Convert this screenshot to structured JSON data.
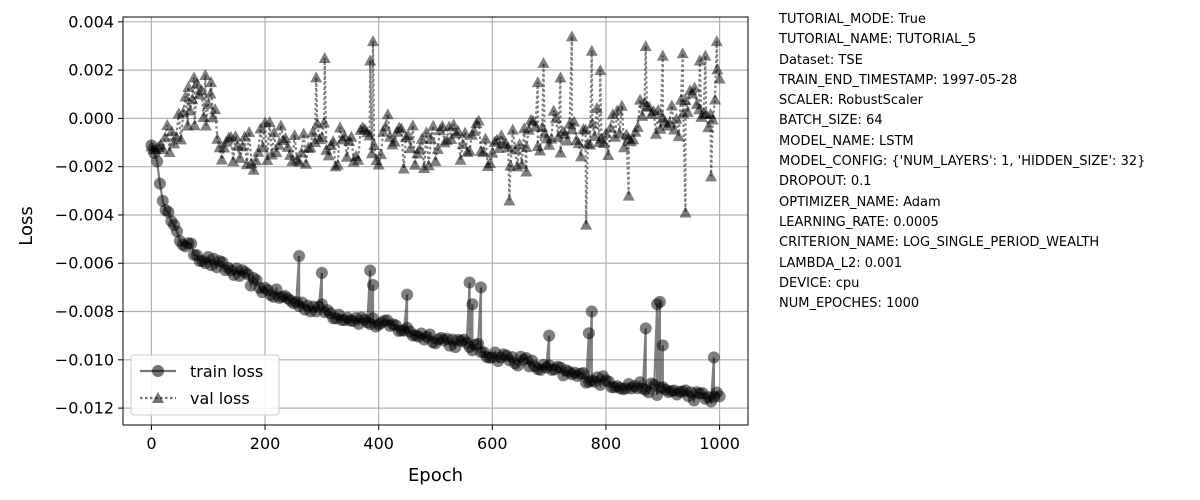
{
  "chart_data": {
    "type": "line",
    "xlabel": "Epoch",
    "ylabel": "Loss",
    "xlim": [
      -50,
      1050
    ],
    "ylim": [
      -0.0127,
      0.0042
    ],
    "x_ticks": [
      0,
      200,
      400,
      600,
      800,
      1000
    ],
    "y_ticks": [
      0.004,
      0.002,
      0.0,
      -0.002,
      -0.004,
      -0.006,
      -0.008,
      -0.01,
      -0.012
    ],
    "x_tick_labels": [
      "0",
      "200",
      "400",
      "600",
      "800",
      "1000"
    ],
    "y_tick_labels": [
      "0.004",
      "0.002",
      "0.000",
      "−0.002",
      "−0.004",
      "−0.006",
      "−0.008",
      "−0.010",
      "−0.012"
    ],
    "grid": true,
    "legend_position": "lower-left",
    "series": [
      {
        "name": "train loss",
        "style": "solid",
        "marker": "circle",
        "color": "#000000",
        "x": [
          0,
          10,
          20,
          30,
          40,
          50,
          60,
          70,
          80,
          90,
          100,
          110,
          120,
          140,
          160,
          180,
          200,
          220,
          240,
          260,
          280,
          300,
          320,
          340,
          360,
          380,
          400,
          420,
          440,
          460,
          480,
          500,
          520,
          540,
          560,
          580,
          600,
          620,
          640,
          660,
          680,
          700,
          720,
          740,
          760,
          780,
          800,
          820,
          840,
          860,
          880,
          900,
          920,
          940,
          960,
          980,
          1000
        ],
        "values": [
          -0.0011,
          -0.0018,
          -0.0032,
          -0.004,
          -0.0046,
          -0.005,
          -0.0052,
          -0.0054,
          -0.0056,
          -0.0058,
          -0.0059,
          -0.006,
          -0.0061,
          -0.0063,
          -0.0065,
          -0.0068,
          -0.0071,
          -0.0073,
          -0.0075,
          -0.0077,
          -0.0078,
          -0.0079,
          -0.0081,
          -0.0082,
          -0.0083,
          -0.0084,
          -0.0085,
          -0.0086,
          -0.0087,
          -0.0089,
          -0.009,
          -0.0091,
          -0.0092,
          -0.0093,
          -0.0094,
          -0.0096,
          -0.0098,
          -0.0099,
          -0.01,
          -0.0101,
          -0.0103,
          -0.0104,
          -0.0105,
          -0.0106,
          -0.0107,
          -0.0108,
          -0.0109,
          -0.011,
          -0.0111,
          -0.0111,
          -0.0112,
          -0.0113,
          -0.0113,
          -0.0114,
          -0.0115,
          -0.0116,
          -0.0115
        ],
        "spikes": [
          {
            "x": 260,
            "value": -0.0057
          },
          {
            "x": 300,
            "value": -0.0064
          },
          {
            "x": 385,
            "value": -0.0063
          },
          {
            "x": 390,
            "value": -0.0069
          },
          {
            "x": 450,
            "value": -0.0073
          },
          {
            "x": 560,
            "value": -0.0068
          },
          {
            "x": 565,
            "value": -0.0077
          },
          {
            "x": 580,
            "value": -0.007
          },
          {
            "x": 700,
            "value": -0.009
          },
          {
            "x": 770,
            "value": -0.0089
          },
          {
            "x": 775,
            "value": -0.008
          },
          {
            "x": 870,
            "value": -0.0087
          },
          {
            "x": 890,
            "value": -0.0077
          },
          {
            "x": 895,
            "value": -0.0076
          },
          {
            "x": 900,
            "value": -0.0094
          },
          {
            "x": 990,
            "value": -0.0099
          }
        ]
      },
      {
        "name": "val loss",
        "style": "dotted",
        "marker": "triangle",
        "color": "#000000",
        "x": [
          0,
          20,
          40,
          60,
          80,
          100,
          120,
          140,
          160,
          180,
          200,
          220,
          240,
          260,
          280,
          300,
          320,
          340,
          360,
          380,
          400,
          420,
          440,
          460,
          480,
          500,
          520,
          540,
          560,
          580,
          600,
          620,
          640,
          660,
          680,
          700,
          720,
          740,
          760,
          780,
          800,
          820,
          840,
          860,
          880,
          900,
          920,
          940,
          960,
          980,
          1000
        ],
        "values": [
          -0.0012,
          -0.0013,
          -0.0005,
          0.0002,
          0.0006,
          0.0006,
          -0.0008,
          -0.0012,
          -0.001,
          -0.0014,
          -0.0008,
          -0.0012,
          -0.001,
          -0.0009,
          -0.0011,
          -0.0006,
          -0.0013,
          -0.0008,
          -0.001,
          -0.0008,
          -0.0011,
          -0.0006,
          -0.0013,
          -0.001,
          -0.0014,
          -0.001,
          -0.0008,
          -0.0012,
          -0.0007,
          -0.001,
          -0.0013,
          -0.0008,
          -0.0014,
          -0.0009,
          -0.0007,
          -0.0004,
          -0.0008,
          -0.0001,
          -0.0009,
          -0.0003,
          -0.0008,
          0.0,
          -0.0006,
          -0.0001,
          0.0002,
          -0.0008,
          -0.0002,
          0.0004,
          0.0007,
          0.0004,
          0.0014
        ],
        "spikes": [
          {
            "x": 65,
            "value": 0.0013
          },
          {
            "x": 75,
            "value": 0.0017
          },
          {
            "x": 95,
            "value": 0.0018
          },
          {
            "x": 105,
            "value": 0.0015
          },
          {
            "x": 290,
            "value": 0.0017
          },
          {
            "x": 305,
            "value": 0.0025
          },
          {
            "x": 385,
            "value": 0.0024
          },
          {
            "x": 390,
            "value": 0.0032
          },
          {
            "x": 630,
            "value": -0.0034
          },
          {
            "x": 660,
            "value": -0.0022
          },
          {
            "x": 680,
            "value": 0.0015
          },
          {
            "x": 690,
            "value": 0.0023
          },
          {
            "x": 720,
            "value": 0.0017
          },
          {
            "x": 740,
            "value": 0.0034
          },
          {
            "x": 765,
            "value": -0.0044
          },
          {
            "x": 775,
            "value": 0.0028
          },
          {
            "x": 790,
            "value": 0.002
          },
          {
            "x": 840,
            "value": -0.0032
          },
          {
            "x": 870,
            "value": 0.003
          },
          {
            "x": 900,
            "value": 0.0026
          },
          {
            "x": 935,
            "value": 0.0027
          },
          {
            "x": 940,
            "value": -0.0039
          },
          {
            "x": 965,
            "value": 0.0024
          },
          {
            "x": 975,
            "value": 0.0026
          },
          {
            "x": 985,
            "value": -0.0024
          },
          {
            "x": 995,
            "value": 0.0032
          }
        ]
      }
    ]
  },
  "config_lines": [
    "TUTORIAL_MODE: True",
    "TUTORIAL_NAME: TUTORIAL_5",
    "Dataset: TSE",
    "TRAIN_END_TIMESTAMP: 1997-05-28",
    "SCALER: RobustScaler",
    "BATCH_SIZE: 64",
    "MODEL_NAME: LSTM",
    "MODEL_CONFIG: {'NUM_LAYERS': 1, 'HIDDEN_SIZE': 32}",
    "DROPOUT: 0.1",
    "OPTIMIZER_NAME: Adam",
    "LEARNING_RATE: 0.0005",
    "CRITERION_NAME: LOG_SINGLE_PERIOD_WEALTH",
    "LAMBDA_L2: 0.001",
    "DEVICE: cpu",
    "NUM_EPOCHES: 1000"
  ]
}
